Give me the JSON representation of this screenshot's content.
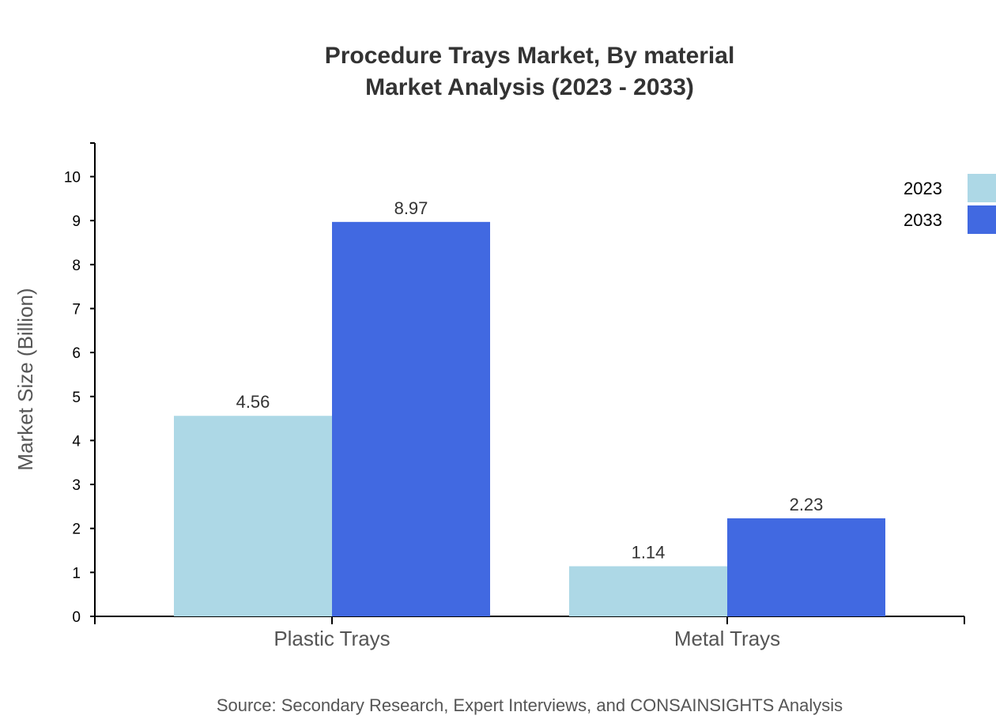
{
  "chart_data": {
    "type": "bar",
    "title": "Procedure Trays Market, By material",
    "subtitle": "Market Analysis (2023 - 2033)",
    "xlabel": "",
    "ylabel": "Market Size (Billion)",
    "categories": [
      "Plastic Trays",
      "Metal Trays"
    ],
    "series": [
      {
        "name": "2023",
        "values": [
          4.56,
          1.14
        ],
        "color": "#add8e6"
      },
      {
        "name": "2033",
        "values": [
          8.97,
          2.23
        ],
        "color": "#4169e1"
      }
    ],
    "ylim": [
      0,
      10.764
    ],
    "yticks": [
      0,
      1,
      2,
      3,
      4,
      5,
      6,
      7,
      8,
      9,
      10
    ],
    "grid": false,
    "legend": "top-right",
    "source": "Source: Secondary Research, Expert Interviews, and CONSAINSIGHTS Analysis"
  }
}
